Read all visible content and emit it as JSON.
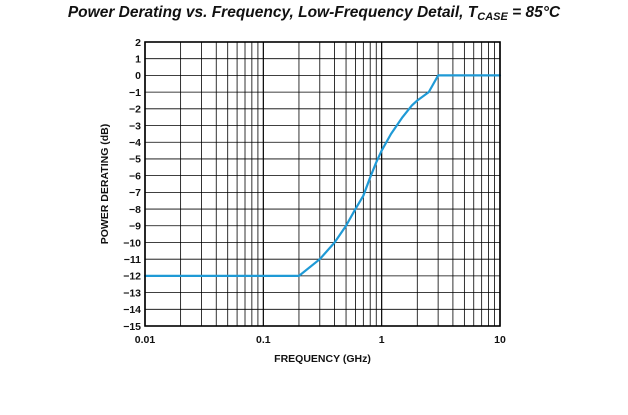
{
  "chart_data": {
    "type": "line",
    "title": {
      "prefix": "Power Derating vs. Frequency, Low-Frequency Detail, T",
      "subscript": "CASE",
      "suffix": " = 85°C"
    },
    "xlabel": "FREQUENCY (GHz)",
    "ylabel": "POWER DERATING (dB)",
    "xscale": "log",
    "xlim": [
      0.01,
      10
    ],
    "ylim": [
      -15,
      2
    ],
    "xticks": [
      {
        "value": 0.01,
        "label": "0.01"
      },
      {
        "value": 0.1,
        "label": "0.1"
      },
      {
        "value": 1,
        "label": "1"
      },
      {
        "value": 10,
        "label": "10"
      }
    ],
    "yticks": [
      {
        "value": 2,
        "label": "2"
      },
      {
        "value": 1,
        "label": "1"
      },
      {
        "value": 0,
        "label": "0"
      },
      {
        "value": -1,
        "label": "−1"
      },
      {
        "value": -2,
        "label": "−2"
      },
      {
        "value": -3,
        "label": "−3"
      },
      {
        "value": -4,
        "label": "−4"
      },
      {
        "value": -5,
        "label": "−5"
      },
      {
        "value": -6,
        "label": "−6"
      },
      {
        "value": -7,
        "label": "−7"
      },
      {
        "value": -8,
        "label": "−8"
      },
      {
        "value": -9,
        "label": "−9"
      },
      {
        "value": -10,
        "label": "−10"
      },
      {
        "value": -11,
        "label": "−11"
      },
      {
        "value": -12,
        "label": "−12"
      },
      {
        "value": -13,
        "label": "−13"
      },
      {
        "value": -14,
        "label": "−14"
      },
      {
        "value": -15,
        "label": "−15"
      }
    ],
    "grid": true,
    "series_color": "#1f9ad6",
    "series": [
      {
        "x": [
          0.01,
          0.2,
          0.3,
          0.4,
          0.5,
          0.6,
          0.7,
          0.8,
          0.9,
          1.0,
          1.2,
          1.5,
          1.8,
          2.0,
          2.5,
          3.0,
          10
        ],
        "y": [
          -12,
          -12,
          -11,
          -10,
          -9,
          -8,
          -7.2,
          -6.1,
          -5.2,
          -4.5,
          -3.5,
          -2.5,
          -1.8,
          -1.5,
          -1.0,
          0,
          0
        ]
      }
    ]
  }
}
